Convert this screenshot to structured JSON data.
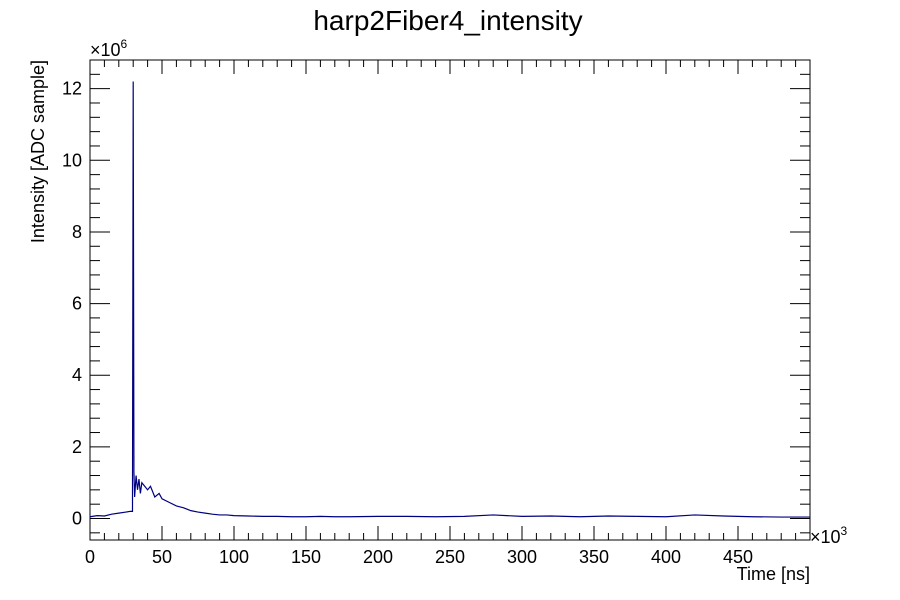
{
  "chart_data": {
    "type": "line",
    "title": "harp2Fiber4_intensity",
    "xlabel": "Time [ns]",
    "ylabel": "Intensity [ADC sample]",
    "x_multiplier": "×10",
    "x_multiplier_exp": "3",
    "y_multiplier": "×10",
    "y_multiplier_exp": "6",
    "xlim": [
      0,
      500
    ],
    "ylim": [
      -0.6,
      12.8
    ],
    "x_ticks": [
      "0",
      "50",
      "100",
      "150",
      "200",
      "250",
      "300",
      "350",
      "400",
      "450"
    ],
    "y_ticks": [
      "0",
      "2",
      "4",
      "6",
      "8",
      "10",
      "12"
    ],
    "grid": false,
    "legend": "none",
    "series": [
      {
        "color": "#000080",
        "x": [
          0,
          5,
          10,
          15,
          20,
          25,
          28,
          29.5,
          30,
          30.5,
          31,
          32,
          33,
          34,
          35,
          36,
          38,
          40,
          42,
          45,
          48,
          50,
          55,
          60,
          65,
          70,
          75,
          80,
          85,
          90,
          95,
          100,
          110,
          120,
          130,
          140,
          150,
          160,
          170,
          180,
          200,
          220,
          240,
          260,
          280,
          300,
          320,
          340,
          360,
          380,
          400,
          420,
          440,
          460,
          480,
          500
        ],
        "y": [
          0.05,
          0.08,
          0.07,
          0.12,
          0.15,
          0.18,
          0.2,
          0.2,
          12.2,
          1.3,
          0.6,
          1.2,
          0.8,
          1.1,
          0.7,
          1.0,
          0.9,
          0.8,
          0.9,
          0.6,
          0.7,
          0.55,
          0.45,
          0.35,
          0.3,
          0.22,
          0.18,
          0.15,
          0.12,
          0.1,
          0.1,
          0.08,
          0.07,
          0.06,
          0.06,
          0.05,
          0.05,
          0.06,
          0.05,
          0.05,
          0.06,
          0.06,
          0.05,
          0.06,
          0.1,
          0.06,
          0.07,
          0.05,
          0.07,
          0.06,
          0.05,
          0.1,
          0.07,
          0.05,
          0.04,
          0.04
        ]
      }
    ]
  }
}
